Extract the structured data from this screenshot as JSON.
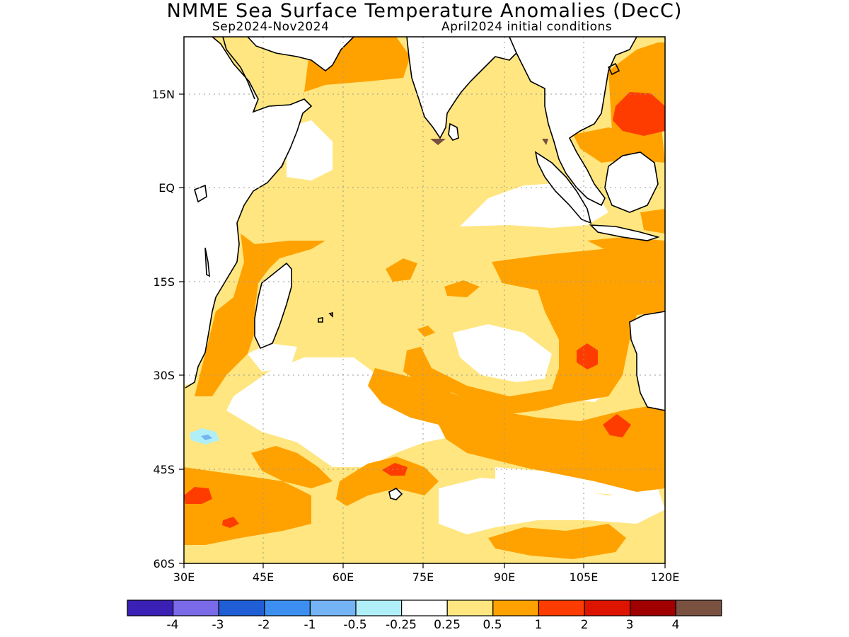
{
  "header": {
    "title": "NMME Sea Surface Temperature Anomalies (DecC)",
    "period": "Sep2024-Nov2024",
    "initial_conditions": "April2024 initial conditions"
  },
  "map": {
    "region": "Indian Ocean",
    "lon_range": [
      30,
      120
    ],
    "lat_range": [
      -60,
      24
    ],
    "x_ticks": [
      "30E",
      "45E",
      "60E",
      "75E",
      "90E",
      "105E",
      "120E"
    ],
    "y_ticks": [
      "15N",
      "EQ",
      "15S",
      "30S",
      "45S",
      "60S"
    ],
    "gridlines": "dotted"
  },
  "colorbar": {
    "colors": [
      "#3a20b4",
      "#7a6ae8",
      "#1f5ed4",
      "#3c8ff0",
      "#74b4f4",
      "#b0eef8",
      "#ffffff",
      "#ffe680",
      "#ffa200",
      "#ff3c00",
      "#dc1400",
      "#a00000",
      "#7a5040"
    ],
    "labels": [
      "-4",
      "-3",
      "-2",
      "-1",
      "-0.5",
      "-0.25",
      "0.25",
      "0.5",
      "1",
      "2",
      "3",
      "4"
    ]
  },
  "legend_colors": {
    "anom_025_05": "#ffe680",
    "anom_05_1": "#ffa200",
    "anom_1_2": "#ff3c00",
    "anom_neg": "#b0eef8",
    "anom_neg2": "#74b4f4",
    "land_mask": "#7a5040"
  }
}
